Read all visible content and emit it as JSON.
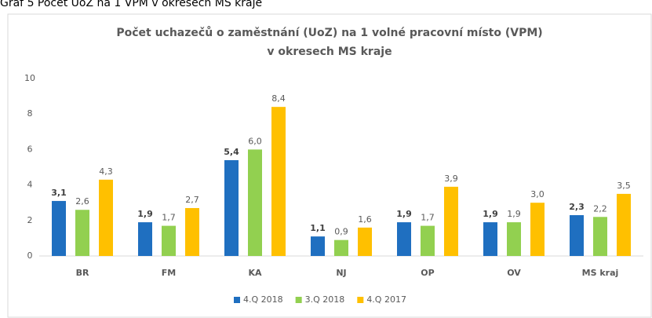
{
  "caption": "Graf 5     Počet UoZ na 1 VPM v okresech MS kraje",
  "chart_data": {
    "type": "bar",
    "title": [
      "Počet uchazečů o zaměstnání (UoZ) na 1 volné pracovní místo (VPM)",
      "v okresech MS kraje"
    ],
    "categories": [
      "BR",
      "FM",
      "KA",
      "NJ",
      "OP",
      "OV",
      "MS kraj"
    ],
    "series": [
      {
        "name": "4.Q 2018",
        "color": "#1f6fc0",
        "values": [
          3.1,
          1.9,
          5.4,
          1.1,
          1.9,
          1.9,
          2.3
        ],
        "value_labels": [
          "3,1",
          "1,9",
          "5,4",
          "1,1",
          "1,9",
          "1,9",
          "2,3"
        ]
      },
      {
        "name": "3.Q 2018",
        "color": "#92d050",
        "values": [
          2.6,
          1.7,
          6.0,
          0.9,
          1.7,
          1.9,
          2.2
        ],
        "value_labels": [
          "2,6",
          "1,7",
          "6,0",
          "0,9",
          "1,7",
          "1,9",
          "2,2"
        ]
      },
      {
        "name": "4.Q 2017",
        "color": "#ffc000",
        "values": [
          4.3,
          2.7,
          8.4,
          1.6,
          3.9,
          3.0,
          3.5
        ],
        "value_labels": [
          "4,3",
          "2,7",
          "8,4",
          "1,6",
          "3,9",
          "3,0",
          "3,5"
        ]
      }
    ],
    "ylim": [
      0,
      10
    ],
    "yticks": [
      0,
      2,
      4,
      6,
      8,
      10
    ],
    "grid": false,
    "legend": "bottom"
  }
}
